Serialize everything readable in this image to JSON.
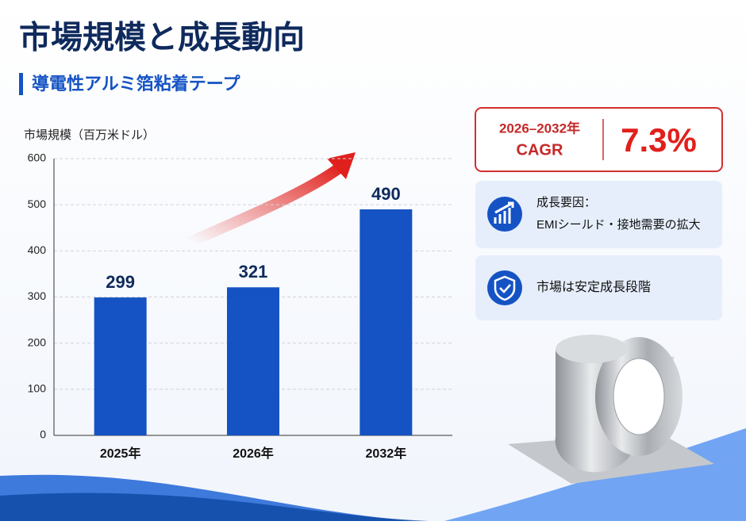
{
  "header": {
    "title": "市場規模と成長動向",
    "subtitle": "導電性アルミ箔粘着テープ"
  },
  "chart_data": {
    "type": "bar",
    "ylabel": "市場規模（百万米ドル）",
    "categories": [
      "2025年",
      "2026年",
      "2032年"
    ],
    "values": [
      299,
      321,
      490
    ],
    "color": "#1553c4",
    "ylim": [
      0,
      600
    ],
    "yticks": [
      0,
      100,
      200,
      300,
      400,
      500,
      600
    ],
    "grid": true
  },
  "cagr": {
    "period": "2026–2032年",
    "label": "CAGR",
    "value": "7.3%"
  },
  "cards": [
    {
      "title": "成長要因：",
      "text": "EMIシールド・接地需要の拡大"
    },
    {
      "text": "市場は安定成長段階"
    }
  ]
}
